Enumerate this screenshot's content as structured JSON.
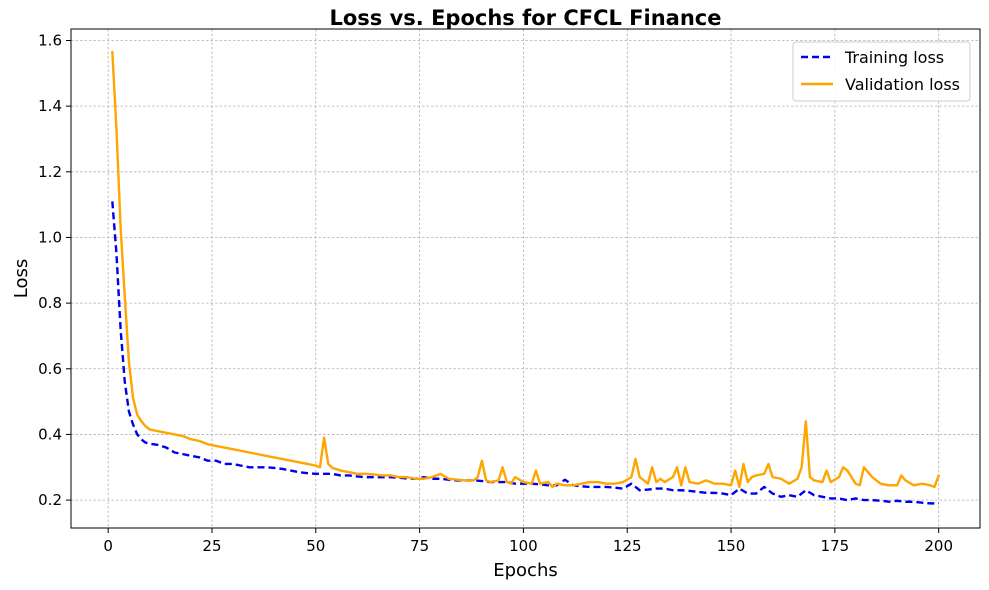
{
  "chart_data": {
    "type": "line",
    "title": "Loss vs. Epochs for CFCL Finance",
    "xlabel": "Epochs",
    "ylabel": "Loss",
    "xlim": [
      -8.95,
      209.95
    ],
    "ylim": [
      0.115,
      1.635
    ],
    "xticks": [
      0,
      25,
      50,
      75,
      100,
      125,
      150,
      175,
      200
    ],
    "yticks": [
      0.2,
      0.4,
      0.6,
      0.8,
      1.0,
      1.2,
      1.4,
      1.6
    ],
    "ytick_labels": [
      "0.2",
      "0.4",
      "0.6",
      "0.8",
      "1.0",
      "1.2",
      "1.4",
      "1.6"
    ],
    "grid": true,
    "legend_position": "top-right",
    "series": [
      {
        "name": "Training loss",
        "color": "#0000ee",
        "dash": "dashed",
        "x": [
          1,
          2,
          3,
          4,
          5,
          6,
          7,
          8,
          9,
          10,
          12,
          14,
          16,
          18,
          20,
          22,
          24,
          26,
          28,
          30,
          32,
          34,
          36,
          38,
          40,
          42,
          44,
          46,
          48,
          50,
          52,
          54,
          56,
          58,
          60,
          62,
          64,
          66,
          68,
          70,
          72,
          74,
          76,
          78,
          80,
          82,
          84,
          86,
          88,
          90,
          92,
          94,
          96,
          98,
          100,
          102,
          104,
          106,
          108,
          110,
          112,
          114,
          116,
          118,
          120,
          122,
          124,
          126,
          128,
          130,
          132,
          134,
          136,
          138,
          140,
          142,
          144,
          146,
          148,
          150,
          152,
          154,
          156,
          158,
          160,
          162,
          164,
          166,
          168,
          170,
          172,
          174,
          176,
          178,
          180,
          182,
          184,
          186,
          188,
          190,
          192,
          194,
          196,
          198,
          200
        ],
        "y": [
          1.11,
          0.95,
          0.72,
          0.56,
          0.47,
          0.43,
          0.4,
          0.385,
          0.375,
          0.372,
          0.368,
          0.36,
          0.345,
          0.34,
          0.335,
          0.33,
          0.32,
          0.32,
          0.31,
          0.31,
          0.305,
          0.3,
          0.3,
          0.3,
          0.298,
          0.295,
          0.29,
          0.285,
          0.282,
          0.28,
          0.28,
          0.28,
          0.275,
          0.275,
          0.272,
          0.27,
          0.27,
          0.27,
          0.27,
          0.268,
          0.266,
          0.265,
          0.27,
          0.265,
          0.265,
          0.262,
          0.26,
          0.26,
          0.26,
          0.258,
          0.255,
          0.255,
          0.255,
          0.25,
          0.25,
          0.25,
          0.248,
          0.245,
          0.245,
          0.262,
          0.245,
          0.242,
          0.24,
          0.24,
          0.24,
          0.238,
          0.235,
          0.25,
          0.23,
          0.232,
          0.235,
          0.235,
          0.23,
          0.23,
          0.228,
          0.225,
          0.222,
          0.222,
          0.22,
          0.215,
          0.235,
          0.22,
          0.22,
          0.24,
          0.22,
          0.21,
          0.215,
          0.21,
          0.23,
          0.215,
          0.21,
          0.205,
          0.205,
          0.2,
          0.205,
          0.2,
          0.2,
          0.198,
          0.195,
          0.198,
          0.195,
          0.195,
          0.192,
          0.19,
          0.19
        ]
      },
      {
        "name": "Validation loss",
        "color": "#ffa500",
        "dash": "solid",
        "x": [
          1,
          2,
          3,
          4,
          5,
          6,
          7,
          8,
          9,
          10,
          12,
          14,
          16,
          18,
          20,
          22,
          24,
          26,
          28,
          30,
          32,
          34,
          36,
          38,
          40,
          42,
          44,
          46,
          48,
          50,
          51,
          52,
          53,
          54,
          56,
          58,
          60,
          62,
          64,
          66,
          68,
          70,
          72,
          74,
          76,
          78,
          80,
          82,
          84,
          86,
          88,
          89,
          90,
          91,
          92,
          94,
          95,
          96,
          97,
          98,
          100,
          102,
          103,
          104,
          106,
          107,
          108,
          110,
          112,
          114,
          116,
          118,
          120,
          122,
          124,
          126,
          127,
          128,
          130,
          131,
          132,
          133,
          134,
          136,
          137,
          138,
          139,
          140,
          142,
          144,
          146,
          148,
          150,
          151,
          152,
          153,
          154,
          155,
          156,
          158,
          159,
          160,
          162,
          164,
          166,
          167,
          168,
          169,
          170,
          172,
          173,
          174,
          176,
          177,
          178,
          180,
          181,
          182,
          184,
          186,
          188,
          190,
          191,
          192,
          194,
          196,
          198,
          199,
          200
        ],
        "y": [
          1.565,
          1.33,
          1.03,
          0.82,
          0.62,
          0.51,
          0.46,
          0.44,
          0.425,
          0.415,
          0.41,
          0.405,
          0.4,
          0.395,
          0.385,
          0.38,
          0.37,
          0.365,
          0.36,
          0.355,
          0.35,
          0.345,
          0.34,
          0.335,
          0.33,
          0.325,
          0.32,
          0.315,
          0.31,
          0.305,
          0.3,
          0.39,
          0.31,
          0.298,
          0.29,
          0.285,
          0.28,
          0.28,
          0.278,
          0.275,
          0.275,
          0.27,
          0.27,
          0.265,
          0.265,
          0.27,
          0.28,
          0.265,
          0.262,
          0.26,
          0.26,
          0.27,
          0.32,
          0.26,
          0.255,
          0.26,
          0.3,
          0.255,
          0.25,
          0.27,
          0.255,
          0.25,
          0.29,
          0.25,
          0.255,
          0.24,
          0.25,
          0.245,
          0.245,
          0.25,
          0.255,
          0.255,
          0.25,
          0.25,
          0.255,
          0.27,
          0.325,
          0.27,
          0.25,
          0.3,
          0.255,
          0.265,
          0.255,
          0.27,
          0.3,
          0.245,
          0.3,
          0.255,
          0.25,
          0.26,
          0.25,
          0.25,
          0.245,
          0.29,
          0.24,
          0.31,
          0.255,
          0.27,
          0.275,
          0.28,
          0.31,
          0.27,
          0.265,
          0.25,
          0.265,
          0.3,
          0.44,
          0.27,
          0.26,
          0.255,
          0.29,
          0.255,
          0.27,
          0.3,
          0.29,
          0.25,
          0.245,
          0.3,
          0.27,
          0.25,
          0.245,
          0.245,
          0.275,
          0.26,
          0.245,
          0.25,
          0.245,
          0.24,
          0.275
        ]
      }
    ]
  }
}
